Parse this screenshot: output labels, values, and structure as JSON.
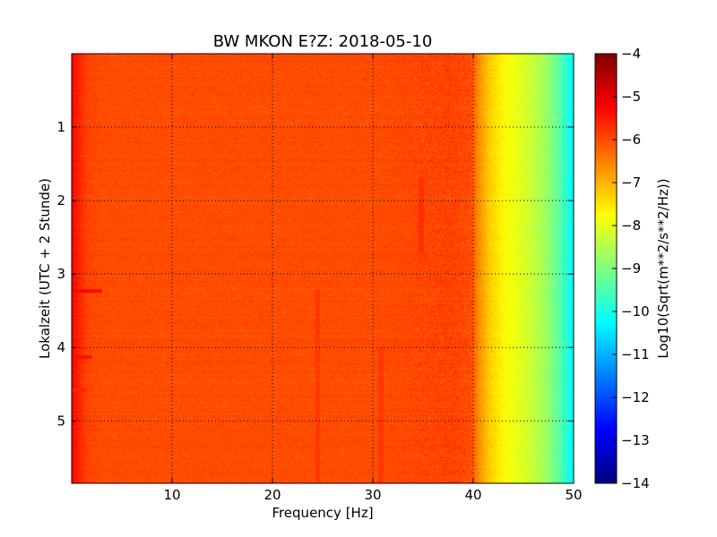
{
  "chart_data": {
    "type": "heatmap",
    "title": "BW MKON E?Z: 2018-05-10",
    "xlabel": "Frequency [Hz]",
    "ylabel": "Lokalzeit (UTC + 2 Stunde)",
    "colorbar_label": "Log10(Sqrt(m**2/s**2/Hz))",
    "xlim": [
      0,
      50
    ],
    "ylim": [
      5.85,
      0
    ],
    "y_inverted": true,
    "x_ticks": [
      10,
      20,
      30,
      40,
      50
    ],
    "x_tick_labels": [
      "10",
      "20",
      "30",
      "40",
      "50"
    ],
    "y_ticks": [
      1,
      2,
      3,
      4,
      5
    ],
    "y_tick_labels": [
      "1",
      "2",
      "3",
      "4",
      "5"
    ],
    "colorbar_range": [
      -14,
      -4
    ],
    "colorbar_ticks": [
      -4,
      -5,
      -6,
      -7,
      -8,
      -9,
      -10,
      -11,
      -12,
      -13,
      -14
    ],
    "colorbar_tick_labels": [
      "−4",
      "−5",
      "−6",
      "−7",
      "−8",
      "−9",
      "−10",
      "−11",
      "−12",
      "−13",
      "−14"
    ],
    "colormap": "jet",
    "grid": true,
    "frequency_profile": [
      {
        "f": 0.0,
        "v": -5.3
      },
      {
        "f": 0.5,
        "v": -5.5
      },
      {
        "f": 1.5,
        "v": -5.9
      },
      {
        "f": 3.0,
        "v": -6.0
      },
      {
        "f": 10.0,
        "v": -6.0
      },
      {
        "f": 30.0,
        "v": -6.0
      },
      {
        "f": 38.0,
        "v": -5.9
      },
      {
        "f": 39.8,
        "v": -6.0
      },
      {
        "f": 40.5,
        "v": -6.6
      },
      {
        "f": 41.5,
        "v": -7.2
      },
      {
        "f": 43.0,
        "v": -7.7
      },
      {
        "f": 45.0,
        "v": -8.1
      },
      {
        "f": 47.0,
        "v": -8.6
      },
      {
        "f": 48.5,
        "v": -9.3
      },
      {
        "f": 49.5,
        "v": -10.0
      },
      {
        "f": 50.0,
        "v": -10.3
      }
    ],
    "horizontal_events": [
      {
        "t": 3.23,
        "f_max": 3.0,
        "v": -5.3
      },
      {
        "t": 4.13,
        "f_max": 2.0,
        "v": -5.4
      },
      {
        "t": 4.58,
        "f_max": 1.5,
        "v": -5.6
      }
    ],
    "vertical_features": [
      {
        "f": 24.5,
        "t_from": 3.2,
        "t_to": 5.85,
        "v": -5.8
      },
      {
        "f": 30.8,
        "t_from": 4.0,
        "t_to": 5.85,
        "v": -5.8
      },
      {
        "f": 34.8,
        "t_from": 1.7,
        "t_to": 2.7,
        "v": -5.7
      }
    ]
  }
}
